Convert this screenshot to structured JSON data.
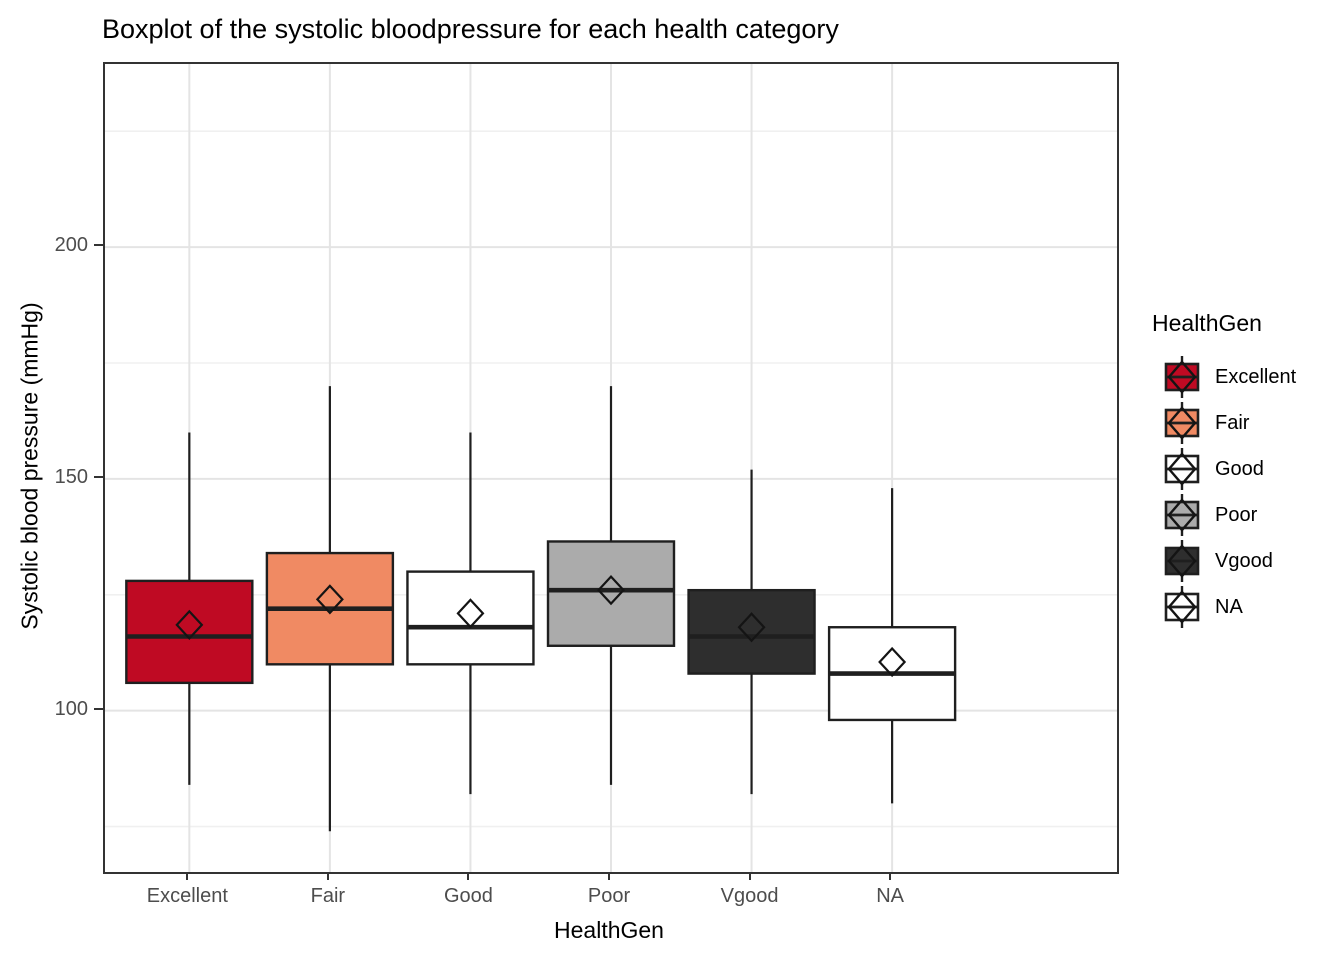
{
  "title": "Boxplot of the systolic bloodpressure for each health category",
  "axes": {
    "x_title": "HealthGen",
    "y_title": "Systolic blood pressure (mmHg)",
    "y_tick_labels": [
      "200",
      "150",
      "100"
    ],
    "y_tick_values": [
      200,
      150,
      100
    ],
    "y_minor_values": [
      225,
      175,
      125,
      75
    ],
    "x_tick_labels": [
      "Excellent",
      "Fair",
      "Good",
      "Poor",
      "Vgood",
      "NA"
    ]
  },
  "legend": {
    "title": "HealthGen",
    "items": [
      {
        "label": "Excellent",
        "fill": "#BF0A23"
      },
      {
        "label": "Fair",
        "fill": "#F08A63"
      },
      {
        "label": "Good",
        "fill": "#FFFFFF"
      },
      {
        "label": "Poor",
        "fill": "#ABABAB"
      },
      {
        "label": "Vgood",
        "fill": "#2E2E2E"
      },
      {
        "label": "NA",
        "fill": "#FFFFFF"
      }
    ]
  },
  "colors": {
    "box_border": "#1F1F1F",
    "grid_major": "#E4E4E4",
    "grid_minor": "#F0F0F0",
    "panel_border": "#333333",
    "tick_text": "#4D4D4D"
  },
  "chart_data": {
    "type": "boxplot",
    "title": "Boxplot of the systolic bloodpressure for each health category",
    "xlabel": "HealthGen",
    "ylabel": "Systolic blood pressure (mmHg)",
    "categories": [
      "Excellent",
      "Fair",
      "Good",
      "Poor",
      "Vgood",
      "NA"
    ],
    "ylim": [
      65.2,
      239.5
    ],
    "y_major_breaks": [
      100,
      150,
      200
    ],
    "y_minor_breaks": [
      75,
      125,
      175,
      225
    ],
    "grid": "horizontal major+minor, vertical at category centers",
    "legend_position": "right",
    "mean_marker": "open-diamond",
    "series": [
      {
        "category": "Excellent",
        "fill": "#BF0A23",
        "min": 84,
        "q1": 106,
        "median": 116,
        "q3": 128,
        "max": 160,
        "mean": 118.5
      },
      {
        "category": "Fair",
        "fill": "#F08A63",
        "min": 74,
        "q1": 110,
        "median": 122,
        "q3": 134,
        "max": 170,
        "mean": 124
      },
      {
        "category": "Good",
        "fill": "#FFFFFF",
        "min": 82,
        "q1": 110,
        "median": 118,
        "q3": 130,
        "max": 160,
        "mean": 121
      },
      {
        "category": "Poor",
        "fill": "#ABABAB",
        "min": 84,
        "q1": 114,
        "median": 126,
        "q3": 136.5,
        "max": 170,
        "mean": 126
      },
      {
        "category": "Vgood",
        "fill": "#2E2E2E",
        "min": 82,
        "q1": 108,
        "median": 116,
        "q3": 126,
        "max": 152,
        "mean": 118
      },
      {
        "category": "NA",
        "fill": "#FFFFFF",
        "min": 80,
        "q1": 98,
        "median": 108,
        "q3": 118,
        "max": 148,
        "mean": 110.5
      }
    ]
  }
}
